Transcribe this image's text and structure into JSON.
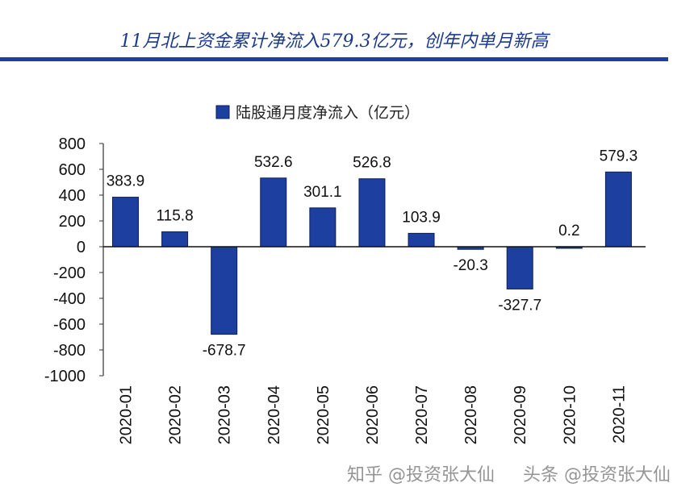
{
  "header": {
    "title": "11月北上资金累计净流入579.3亿元，创年内单月新高"
  },
  "watermarks": [
    "知乎 @投资张大仙",
    "头条 @投资张大仙"
  ],
  "colors": {
    "bar": "#1d3fa0",
    "bar_outline": "#0d1f5c",
    "title": "#1b3a8c",
    "rule": "#1d3fa0"
  },
  "chart_data": {
    "type": "bar",
    "categories": [
      "2020-01",
      "2020-02",
      "2020-03",
      "2020-04",
      "2020-05",
      "2020-06",
      "2020-07",
      "2020-08",
      "2020-09",
      "2020-10",
      "2020-11"
    ],
    "series": [
      {
        "name": "陆股通月度净流入（亿元）",
        "values": [
          383.9,
          115.8,
          -678.7,
          532.6,
          301.1,
          526.8,
          103.9,
          -20.3,
          -327.7,
          0.2,
          579.3
        ]
      }
    ],
    "data_labels": [
      "383.9",
      "115.8",
      "-678.7",
      "532.6",
      "301.1",
      "526.8",
      "103.9",
      "-20.3",
      "-327.7",
      "0.2",
      "579.3"
    ],
    "yticks": [
      800,
      600,
      400,
      200,
      0,
      -200,
      -400,
      -600,
      -800,
      -1000
    ],
    "ylim": [
      -1000,
      800
    ],
    "legend_position": "top-center",
    "grid": false
  }
}
